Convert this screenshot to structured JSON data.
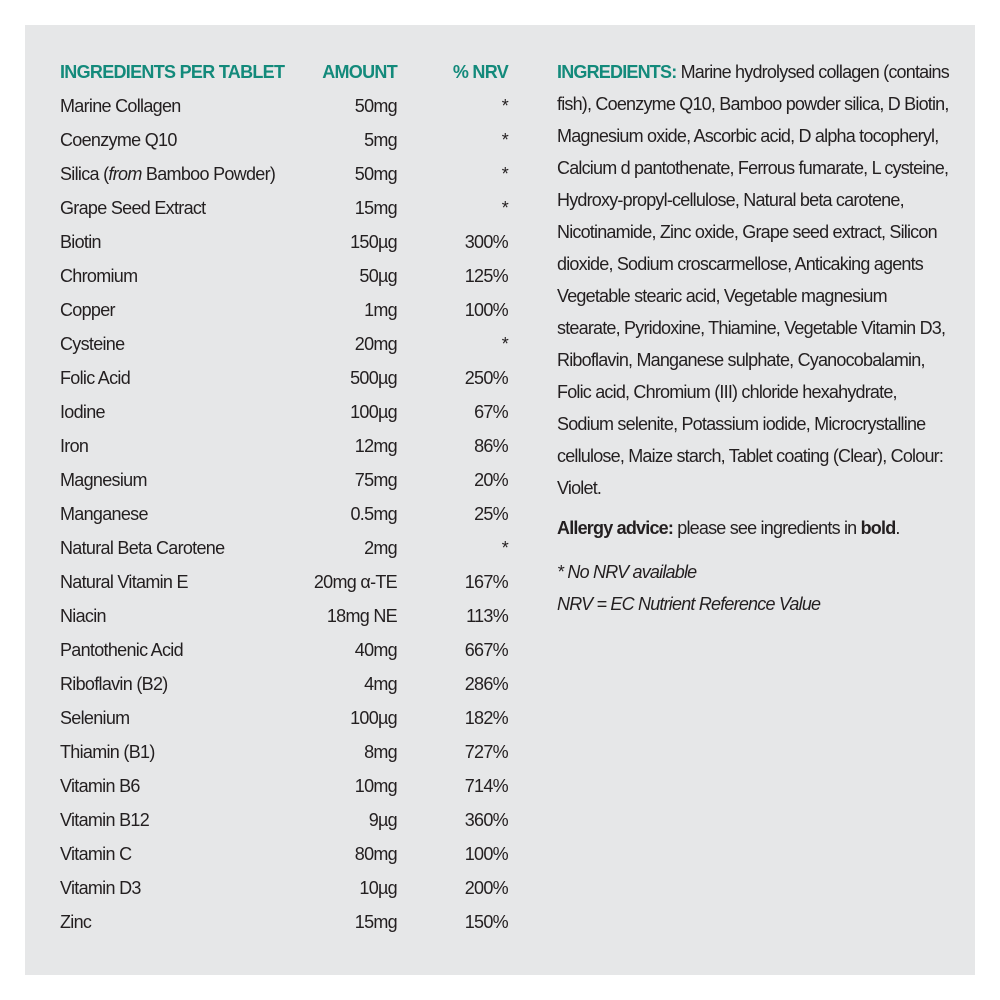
{
  "table": {
    "header": [
      "INGREDIENTS PER TABLET",
      "AMOUNT",
      "% NRV"
    ],
    "rows": [
      {
        "name": "Marine Collagen",
        "amount": "50mg",
        "nrv": "*"
      },
      {
        "name": "Coenzyme Q10",
        "amount": "5mg",
        "nrv": "*"
      },
      {
        "name": [
          "Silica (",
          "from",
          " Bamboo Powder)"
        ],
        "amount": "50mg",
        "nrv": "*"
      },
      {
        "name": "Grape Seed Extract",
        "amount": "15mg",
        "nrv": "*"
      },
      {
        "name": "Biotin",
        "amount": "150µg",
        "nrv": "300%"
      },
      {
        "name": "Chromium",
        "amount": "50µg",
        "nrv": "125%"
      },
      {
        "name": "Copper",
        "amount": "1mg",
        "nrv": "100%"
      },
      {
        "name": "Cysteine",
        "amount": "20mg",
        "nrv": "*"
      },
      {
        "name": "Folic Acid",
        "amount": "500µg",
        "nrv": "250%"
      },
      {
        "name": "Iodine",
        "amount": "100µg",
        "nrv": "67%"
      },
      {
        "name": "Iron",
        "amount": "12mg",
        "nrv": "86%"
      },
      {
        "name": "Magnesium",
        "amount": "75mg",
        "nrv": "20%"
      },
      {
        "name": "Manganese",
        "amount": "0.5mg",
        "nrv": "25%"
      },
      {
        "name": "Natural Beta Carotene",
        "amount": "2mg",
        "nrv": "*"
      },
      {
        "name": "Natural Vitamin E",
        "amount": "20mg α-TE",
        "nrv": "167%"
      },
      {
        "name": "Niacin",
        "amount": "18mg NE",
        "nrv": "113%"
      },
      {
        "name": "Pantothenic Acid",
        "amount": "40mg",
        "nrv": "667%"
      },
      {
        "name": "Riboflavin (B2)",
        "amount": "4mg",
        "nrv": "286%"
      },
      {
        "name": "Selenium",
        "amount": "100µg",
        "nrv": "182%"
      },
      {
        "name": "Thiamin (B1)",
        "amount": "8mg",
        "nrv": "727%"
      },
      {
        "name": "Vitamin B6",
        "amount": "10mg",
        "nrv": "714%"
      },
      {
        "name": "Vitamin B12",
        "amount": "9µg",
        "nrv": "360%"
      },
      {
        "name": "Vitamin C",
        "amount": "80mg",
        "nrv": "100%"
      },
      {
        "name": "Vitamin D3",
        "amount": "10µg",
        "nrv": "200%"
      },
      {
        "name": "Zinc",
        "amount": "15mg",
        "nrv": "150%"
      }
    ]
  },
  "ingredients": {
    "label": "INGREDIENTS:",
    "text": " Marine hydrolysed collagen (contains fish), Coenzyme Q10, Bamboo powder silica, D Biotin, Magnesium oxide, Ascorbic acid, D alpha tocopheryl, Calcium d pantothenate, Ferrous fumarate, L cysteine, Hydroxy-propyl-cellulose, Natural beta carotene, Nicotinamide, Zinc oxide, Grape seed extract, Silicon dioxide, Sodium croscarmellose, Anticaking agents Vegetable stearic acid, Vegetable magnesium stearate, Pyridoxine, Thiamine, Vegetable Vitamin D3, Riboflavin, Manganese sulphate, Cyanocobalamin, Folic acid, Chromium (III) chloride hexahydrate, Sodium selenite, Potassium iodide, Microcrystalline cellulose, Maize starch, Tablet coating (Clear), Colour: Violet."
  },
  "allergy": [
    "Allergy advice:",
    " please see ingredients in ",
    "bold",
    "."
  ],
  "notes": [
    "* No NRV available",
    "NRV = EC Nutrient Reference Value"
  ]
}
